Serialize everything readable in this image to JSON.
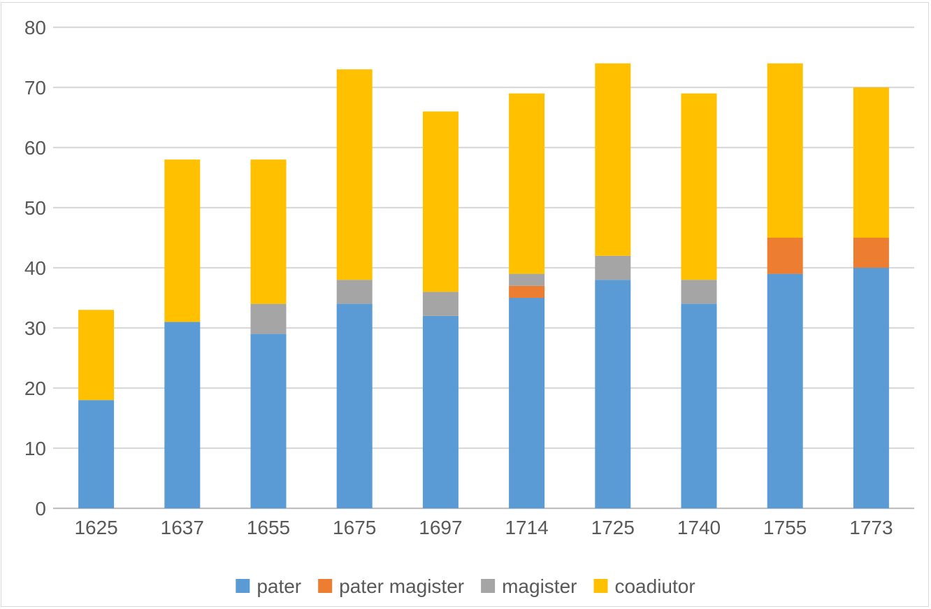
{
  "chart_data": {
    "type": "bar",
    "stacked": true,
    "title": "",
    "xlabel": "",
    "ylabel": "",
    "categories": [
      "1625",
      "1637",
      "1655",
      "1675",
      "1697",
      "1714",
      "1725",
      "1740",
      "1755",
      "1773"
    ],
    "series": [
      {
        "name": "pater",
        "color": "#5b9bd5",
        "values": [
          18,
          31,
          29,
          34,
          32,
          35,
          38,
          34,
          39,
          40
        ]
      },
      {
        "name": "pater magister",
        "color": "#ed7d31",
        "values": [
          0,
          0,
          0,
          0,
          0,
          2,
          0,
          0,
          6,
          5
        ]
      },
      {
        "name": "magister",
        "color": "#a5a5a5",
        "values": [
          0,
          0,
          5,
          4,
          4,
          2,
          4,
          4,
          0,
          0
        ]
      },
      {
        "name": "coadiutor",
        "color": "#ffc000",
        "values": [
          15,
          27,
          24,
          35,
          30,
          30,
          32,
          31,
          29,
          25
        ]
      }
    ],
    "ylim": [
      0,
      80
    ],
    "yticks": [
      0,
      10,
      20,
      30,
      40,
      50,
      60,
      70,
      80
    ],
    "grid": true,
    "legend": "bottom"
  }
}
